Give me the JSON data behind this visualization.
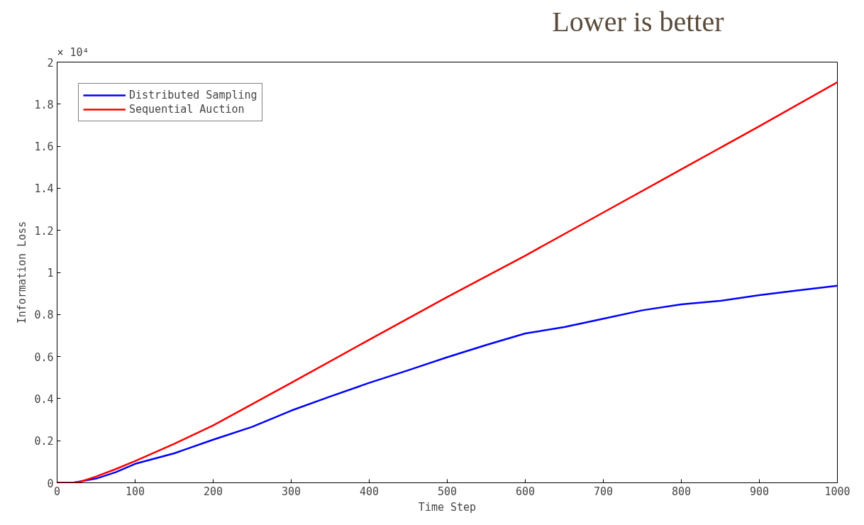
{
  "chart_data": {
    "type": "line",
    "xlabel": "Time Step",
    "ylabel": "Information Loss",
    "annotations": [
      "× 10⁴",
      "Lower is better"
    ],
    "xlim": [
      0,
      1000
    ],
    "ylim": [
      0,
      2
    ],
    "xticks": [
      0,
      100,
      200,
      300,
      400,
      500,
      600,
      700,
      800,
      900,
      1000
    ],
    "yticks": [
      0,
      {
        "value": 0.2,
        "label": "0.2"
      },
      {
        "value": 0.4,
        "label": "0.4"
      },
      {
        "value": 0.6,
        "label": "0.6"
      },
      {
        "value": 0.8,
        "label": "0.8"
      },
      1,
      {
        "value": 1.2,
        "label": "1.2"
      },
      {
        "value": 1.4,
        "label": "1.4"
      },
      {
        "value": 1.6,
        "label": "1.6"
      },
      {
        "value": 1.8,
        "label": "1.8"
      },
      2
    ],
    "grid": false,
    "legend": "top left",
    "marker": "none",
    "line_style": "solid",
    "series": [
      {
        "name": "Distributed Sampling",
        "color": "#0000ff",
        "x": [
          0,
          20,
          50,
          75,
          100,
          150,
          200,
          250,
          300,
          350,
          400,
          450,
          500,
          550,
          600,
          650,
          700,
          750,
          800,
          850,
          900,
          950,
          1000
        ],
        "values": [
          0,
          0,
          0.02,
          0.05,
          0.09,
          0.14,
          0.205,
          0.266,
          0.343,
          0.41,
          0.475,
          0.535,
          0.597,
          0.655,
          0.71,
          0.74,
          0.78,
          0.82,
          0.848,
          0.865,
          0.892,
          0.915,
          0.937
        ]
      },
      {
        "name": "Sequential Auction",
        "color": "#ff0000",
        "x": [
          0,
          20,
          30,
          50,
          75,
          100,
          150,
          200,
          300,
          400,
          500,
          600,
          700,
          800,
          900,
          1000
        ],
        "values": [
          0,
          0,
          0.005,
          0.03,
          0.065,
          0.103,
          0.185,
          0.273,
          0.475,
          0.68,
          0.883,
          1.08,
          1.285,
          1.49,
          1.695,
          1.904
        ]
      }
    ]
  }
}
